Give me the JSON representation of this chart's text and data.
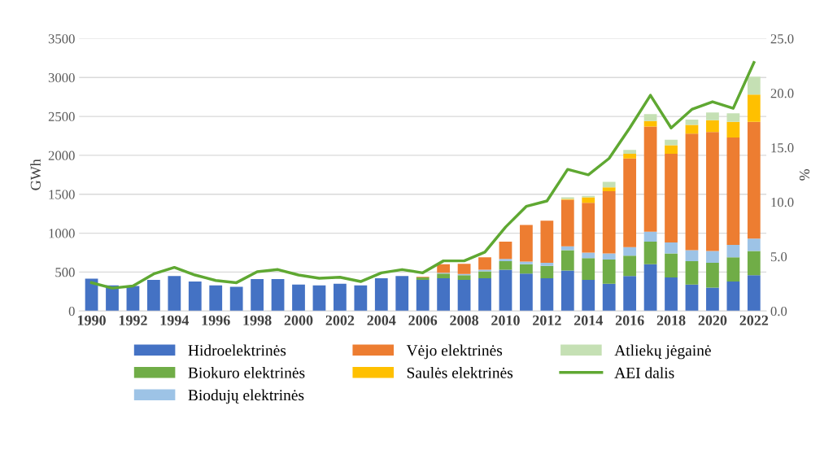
{
  "chart_data": {
    "type": "bar",
    "stacked": true,
    "ylabel": "GWh",
    "y2label": "%",
    "categories": [
      "1990",
      null,
      "1992",
      null,
      "1994",
      null,
      "1996",
      null,
      "1998",
      null,
      "2000",
      null,
      "2002",
      null,
      "2004",
      null,
      "2006",
      null,
      "2008",
      null,
      "2010",
      null,
      "2012",
      null,
      "2014",
      null,
      "2016",
      null,
      "2018",
      null,
      "2020",
      null,
      "2022"
    ],
    "series": [
      {
        "name": "Hidroelektrinės",
        "color": "#4472c4",
        "values": [
          415,
          330,
          320,
          400,
          450,
          380,
          330,
          310,
          410,
          410,
          340,
          330,
          350,
          330,
          420,
          450,
          400,
          420,
          400,
          420,
          530,
          480,
          420,
          520,
          400,
          350,
          450,
          600,
          430,
          340,
          300,
          380,
          460
        ]
      },
      {
        "name": "Biokuro elektrinės",
        "color": "#70ad47",
        "values": [
          0,
          0,
          0,
          0,
          0,
          0,
          0,
          0,
          0,
          0,
          0,
          0,
          0,
          0,
          0,
          0,
          30,
          60,
          60,
          90,
          110,
          120,
          160,
          260,
          280,
          310,
          260,
          290,
          310,
          300,
          320,
          310,
          310
        ]
      },
      {
        "name": "Biodujų elektrinės",
        "color": "#9dc3e6",
        "values": [
          0,
          0,
          0,
          0,
          0,
          0,
          0,
          0,
          0,
          0,
          0,
          0,
          0,
          0,
          0,
          0,
          0,
          10,
          15,
          20,
          30,
          35,
          40,
          50,
          70,
          80,
          110,
          130,
          140,
          140,
          150,
          160,
          160
        ]
      },
      {
        "name": "Vėjo elektrinės",
        "color": "#ed7d31",
        "values": [
          0,
          0,
          0,
          0,
          0,
          0,
          0,
          0,
          0,
          0,
          0,
          0,
          0,
          0,
          0,
          0,
          10,
          110,
          130,
          160,
          220,
          470,
          540,
          600,
          640,
          800,
          1140,
          1350,
          1140,
          1500,
          1530,
          1380,
          1500
        ]
      },
      {
        "name": "Saulės elektrinės",
        "color": "#ffc000",
        "values": [
          0,
          0,
          0,
          0,
          0,
          0,
          0,
          0,
          0,
          0,
          0,
          0,
          0,
          0,
          0,
          0,
          0,
          0,
          0,
          0,
          0,
          0,
          0,
          10,
          70,
          50,
          60,
          70,
          110,
          110,
          150,
          200,
          350
        ]
      },
      {
        "name": "Atliekų jėgainė",
        "color": "#c5e0b4",
        "values": [
          0,
          0,
          0,
          0,
          0,
          0,
          0,
          0,
          0,
          0,
          0,
          0,
          0,
          0,
          0,
          0,
          0,
          0,
          0,
          0,
          0,
          0,
          0,
          20,
          20,
          70,
          50,
          90,
          70,
          70,
          100,
          110,
          230
        ]
      },
      {
        "name": "AEI dalis",
        "type": "line",
        "axis": "y2",
        "color": "#5fa832",
        "values": [
          2.6,
          2.1,
          2.3,
          3.4,
          4.0,
          3.3,
          2.8,
          2.6,
          3.6,
          3.8,
          3.3,
          3.0,
          3.1,
          2.7,
          3.5,
          3.8,
          3.5,
          4.6,
          4.6,
          5.4,
          7.7,
          9.6,
          10.1,
          13.0,
          12.5,
          14.0,
          16.8,
          19.8,
          16.8,
          18.5,
          19.2,
          18.6,
          22.8
        ]
      }
    ],
    "ylim": [
      0,
      3500
    ],
    "yticks": [
      0,
      500,
      1000,
      1500,
      2000,
      2500,
      3000,
      3500
    ],
    "y2lim": [
      0,
      25
    ],
    "y2ticks": [
      {
        "value": 0,
        "label": "0.0"
      },
      {
        "value": 5,
        "label": "5.0"
      },
      {
        "value": 10,
        "label": "10.0"
      },
      {
        "value": 15,
        "label": "15.0"
      },
      {
        "value": 20,
        "label": "20.0"
      },
      {
        "value": 25,
        "label": "25.0"
      }
    ],
    "grid": "y",
    "legend": "bottom",
    "marker": "none",
    "line_style": "solid"
  }
}
